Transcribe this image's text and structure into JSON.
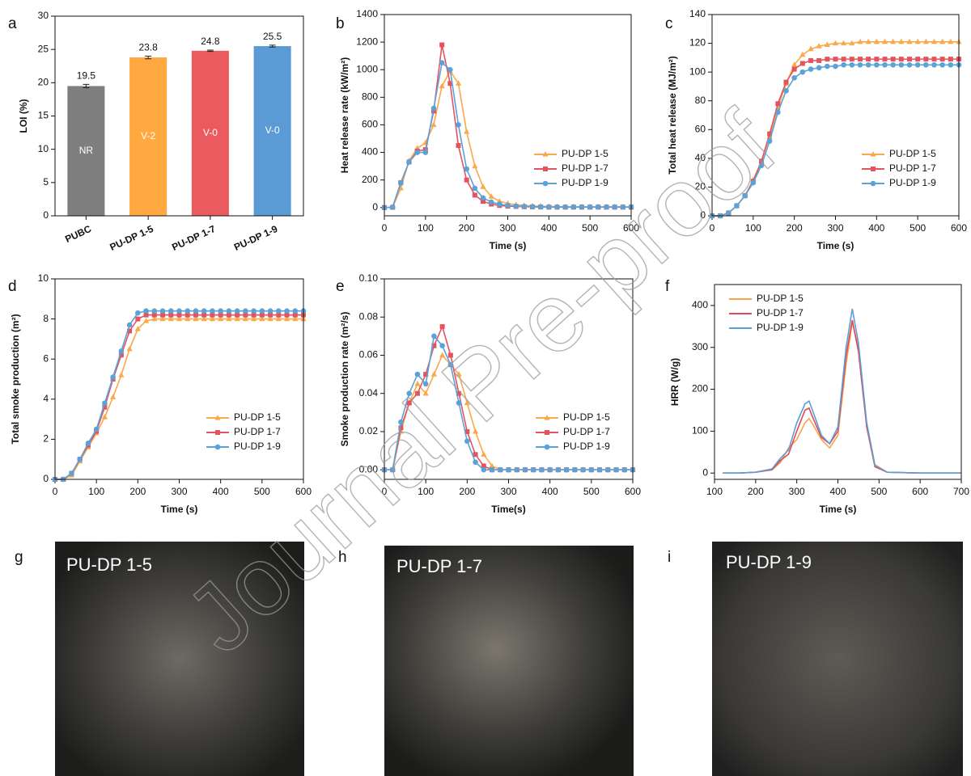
{
  "chart_data": [
    {
      "type": "bar",
      "panel": "a",
      "ylabel": "LOI (%)",
      "categories": [
        "PUBC",
        "PU-DP 1-5",
        "PU-DP 1-7",
        "PU-DP 1-9"
      ],
      "values": [
        19.5,
        23.8,
        24.8,
        25.5
      ],
      "errors": [
        0.25,
        0.2,
        0.1,
        0.15
      ],
      "ratings": [
        "NR",
        "V-2",
        "V-0",
        "V-0"
      ],
      "colors": [
        "#7f7f7f",
        "#ffa940",
        "#ea5a5e",
        "#5b9bd5"
      ],
      "ylim": [
        0,
        30
      ],
      "yticks": [
        0,
        5,
        10,
        15,
        20,
        25,
        30
      ]
    },
    {
      "type": "line",
      "panel": "b",
      "xlabel": "Time (s)",
      "ylabel": "Heat release rate (kW/m²)",
      "x": [
        0,
        20,
        40,
        60,
        80,
        100,
        120,
        140,
        160,
        180,
        200,
        220,
        240,
        260,
        280,
        300,
        320,
        340,
        360,
        380,
        400,
        420,
        440,
        460,
        480,
        500,
        520,
        540,
        560,
        580,
        600
      ],
      "series": [
        {
          "name": "PU-DP 1-5",
          "color": "#f9a94b",
          "marker": "triangle",
          "values": [
            0,
            2,
            140,
            340,
            430,
            470,
            600,
            880,
            990,
            900,
            550,
            300,
            150,
            80,
            45,
            30,
            20,
            15,
            12,
            10,
            8,
            7,
            6,
            6,
            5,
            5,
            5,
            5,
            5,
            5,
            5
          ]
        },
        {
          "name": "PU-DP 1-7",
          "color": "#e4545f",
          "marker": "square",
          "values": [
            0,
            2,
            180,
            330,
            410,
            420,
            700,
            1180,
            900,
            450,
            200,
            90,
            45,
            25,
            15,
            10,
            8,
            6,
            5,
            4,
            3,
            3,
            3,
            3,
            3,
            3,
            3,
            3,
            3,
            3,
            3
          ]
        },
        {
          "name": "PU-DP 1-9",
          "color": "#5aa2d8",
          "marker": "circle",
          "values": [
            0,
            2,
            180,
            330,
            400,
            400,
            720,
            1050,
            1000,
            600,
            280,
            140,
            70,
            40,
            25,
            15,
            10,
            8,
            6,
            5,
            4,
            4,
            4,
            4,
            4,
            4,
            4,
            4,
            4,
            4,
            4
          ]
        }
      ],
      "xlim": [
        0,
        600
      ],
      "xticks": [
        0,
        100,
        200,
        300,
        400,
        500,
        600
      ],
      "ylim": [
        -60,
        1400
      ],
      "yticks": [
        0,
        200,
        400,
        600,
        800,
        1000,
        1200,
        1400
      ],
      "legend": "lower right"
    },
    {
      "type": "line",
      "panel": "c",
      "xlabel": "Time (s)",
      "ylabel": "Total heat release (MJ/m²)",
      "x": [
        0,
        20,
        40,
        60,
        80,
        100,
        120,
        140,
        160,
        180,
        200,
        220,
        240,
        260,
        280,
        300,
        320,
        340,
        360,
        380,
        400,
        420,
        440,
        460,
        480,
        500,
        520,
        540,
        560,
        580,
        600
      ],
      "series": [
        {
          "name": "PU-DP 1-5",
          "color": "#f9a94b",
          "marker": "triangle",
          "values": [
            0,
            0,
            2,
            7,
            14,
            25,
            38,
            55,
            75,
            92,
            105,
            112,
            116,
            118,
            119,
            120,
            120,
            120,
            121,
            121,
            121,
            121,
            121,
            121,
            121,
            121,
            121,
            121,
            121,
            121,
            121
          ]
        },
        {
          "name": "PU-DP 1-7",
          "color": "#e4545f",
          "marker": "square",
          "values": [
            0,
            0,
            2,
            7,
            14,
            24,
            38,
            57,
            78,
            93,
            102,
            106,
            108,
            108,
            109,
            109,
            109,
            109,
            109,
            109,
            109,
            109,
            109,
            109,
            109,
            109,
            109,
            109,
            109,
            109,
            109
          ]
        },
        {
          "name": "PU-DP 1-9",
          "color": "#5aa2d8",
          "marker": "circle",
          "values": [
            0,
            0,
            2,
            7,
            14,
            23,
            35,
            52,
            72,
            87,
            96,
            100,
            102,
            103,
            104,
            104,
            105,
            105,
            105,
            105,
            105,
            105,
            105,
            105,
            105,
            105,
            105,
            105,
            105,
            105,
            105
          ]
        }
      ],
      "xlim": [
        0,
        600
      ],
      "xticks": [
        0,
        100,
        200,
        300,
        400,
        500,
        600
      ],
      "ylim": [
        0,
        140
      ],
      "yticks": [
        0,
        20,
        40,
        60,
        80,
        100,
        120,
        140
      ],
      "legend": "lower right"
    },
    {
      "type": "line",
      "panel": "d",
      "xlabel": "Time (s)",
      "ylabel": "Total smoke production (m²)",
      "x": [
        0,
        20,
        40,
        60,
        80,
        100,
        120,
        140,
        160,
        180,
        200,
        220,
        240,
        260,
        280,
        300,
        320,
        340,
        360,
        380,
        400,
        420,
        440,
        460,
        480,
        500,
        520,
        540,
        560,
        580,
        600
      ],
      "series": [
        {
          "name": "PU-DP 1-5",
          "color": "#f9a94b",
          "marker": "triangle",
          "values": [
            0,
            0,
            0.2,
            0.9,
            1.6,
            2.3,
            3.1,
            4.1,
            5.2,
            6.5,
            7.5,
            7.9,
            8,
            8,
            8,
            8,
            8,
            8,
            8,
            8,
            8,
            8,
            8,
            8,
            8,
            8,
            8,
            8,
            8,
            8,
            8
          ]
        },
        {
          "name": "PU-DP 1-7",
          "color": "#e4545f",
          "marker": "square",
          "values": [
            0,
            0,
            0.3,
            1,
            1.7,
            2.4,
            3.6,
            5,
            6.2,
            7.4,
            8,
            8.2,
            8.2,
            8.2,
            8.2,
            8.2,
            8.2,
            8.2,
            8.2,
            8.2,
            8.2,
            8.2,
            8.2,
            8.2,
            8.2,
            8.2,
            8.2,
            8.2,
            8.2,
            8.2,
            8.2
          ]
        },
        {
          "name": "PU-DP 1-9",
          "color": "#5aa2d8",
          "marker": "circle",
          "values": [
            0,
            0,
            0.3,
            1,
            1.8,
            2.5,
            3.8,
            5.1,
            6.4,
            7.7,
            8.3,
            8.4,
            8.4,
            8.4,
            8.4,
            8.4,
            8.4,
            8.4,
            8.4,
            8.4,
            8.4,
            8.4,
            8.4,
            8.4,
            8.4,
            8.4,
            8.4,
            8.4,
            8.4,
            8.4,
            8.4
          ]
        }
      ],
      "xlim": [
        0,
        600
      ],
      "xticks": [
        0,
        100,
        200,
        300,
        400,
        500,
        600
      ],
      "ylim": [
        0,
        10
      ],
      "yticks": [
        0,
        2,
        4,
        6,
        8,
        10
      ],
      "legend": "lower right"
    },
    {
      "type": "line",
      "panel": "e",
      "xlabel": "Time(s)",
      "ylabel": "Smoke production rate (m²/s)",
      "x": [
        0,
        20,
        40,
        60,
        80,
        100,
        120,
        140,
        160,
        180,
        200,
        220,
        240,
        260,
        280,
        300,
        320,
        340,
        360,
        380,
        400,
        420,
        440,
        460,
        480,
        500,
        520,
        540,
        560,
        580,
        600
      ],
      "series": [
        {
          "name": "PU-DP 1-5",
          "color": "#f9a94b",
          "marker": "triangle",
          "values": [
            0,
            0,
            0.02,
            0.035,
            0.045,
            0.04,
            0.05,
            0.06,
            0.055,
            0.05,
            0.035,
            0.02,
            0.008,
            0.002,
            0,
            0,
            0,
            0,
            0,
            0,
            0,
            0,
            0,
            0,
            0,
            0,
            0,
            0,
            0,
            0,
            0
          ]
        },
        {
          "name": "PU-DP 1-7",
          "color": "#e4545f",
          "marker": "square",
          "values": [
            0,
            0,
            0.022,
            0.035,
            0.04,
            0.05,
            0.065,
            0.075,
            0.06,
            0.04,
            0.02,
            0.008,
            0.002,
            0,
            0,
            0,
            0,
            0,
            0,
            0,
            0,
            0,
            0,
            0,
            0,
            0,
            0,
            0,
            0,
            0,
            0
          ]
        },
        {
          "name": "PU-DP 1-9",
          "color": "#5aa2d8",
          "marker": "circle",
          "values": [
            0,
            0,
            0.025,
            0.04,
            0.05,
            0.045,
            0.07,
            0.065,
            0.055,
            0.035,
            0.015,
            0.004,
            0,
            0,
            0,
            0,
            0,
            0,
            0,
            0,
            0,
            0,
            0,
            0,
            0,
            0,
            0,
            0,
            0,
            0,
            0
          ]
        }
      ],
      "xlim": [
        0,
        600
      ],
      "xticks": [
        0,
        100,
        200,
        300,
        400,
        500,
        600
      ],
      "ylim": [
        -0.005,
        0.1
      ],
      "yticks": [
        {
          "value": 0,
          "label": "0.00"
        },
        {
          "value": 0.02,
          "label": "0.02"
        },
        {
          "value": 0.04,
          "label": "0.04"
        },
        {
          "value": 0.06,
          "label": "0.06"
        },
        {
          "value": 0.08,
          "label": "0.08"
        },
        {
          "value": 0.1,
          "label": "0.10"
        }
      ],
      "legend": "lower right"
    },
    {
      "type": "line",
      "panel": "f",
      "xlabel": "Time (s)",
      "ylabel": "HRR (W/g)",
      "x": [
        120,
        160,
        200,
        240,
        260,
        280,
        300,
        320,
        330,
        340,
        360,
        380,
        400,
        420,
        435,
        450,
        470,
        490,
        520,
        600,
        700
      ],
      "series": [
        {
          "name": "PU-DP 1-5",
          "color": "#f6a34c",
          "values": [
            0,
            0,
            2,
            8,
            25,
            60,
            80,
            120,
            130,
            115,
            80,
            60,
            90,
            260,
            360,
            300,
            120,
            20,
            2,
            0,
            0
          ]
        },
        {
          "name": "PU-DP 1-7",
          "color": "#e04a58",
          "values": [
            0,
            0,
            2,
            8,
            30,
            45,
            100,
            150,
            155,
            130,
            85,
            70,
            100,
            280,
            365,
            290,
            110,
            15,
            2,
            0,
            0
          ]
        },
        {
          "name": "PU-DP 1-9",
          "color": "#5b9fd6",
          "values": [
            0,
            0,
            2,
            10,
            35,
            55,
            120,
            165,
            172,
            145,
            90,
            70,
            110,
            300,
            392,
            310,
            120,
            18,
            2,
            0,
            0
          ]
        }
      ],
      "xlim": [
        100,
        700
      ],
      "xticks": [
        100,
        200,
        300,
        400,
        500,
        600,
        700
      ],
      "ylim": [
        -15,
        450
      ],
      "yticks": [
        0,
        100,
        200,
        300,
        400
      ],
      "legend": "upper left"
    }
  ],
  "photos": [
    {
      "panel": "g",
      "label": "PU-DP 1-5"
    },
    {
      "panel": "h",
      "label": "PU-DP 1-7"
    },
    {
      "panel": "i",
      "label": "PU-DP 1-9"
    }
  ],
  "watermark": "Journal Pre-proof"
}
